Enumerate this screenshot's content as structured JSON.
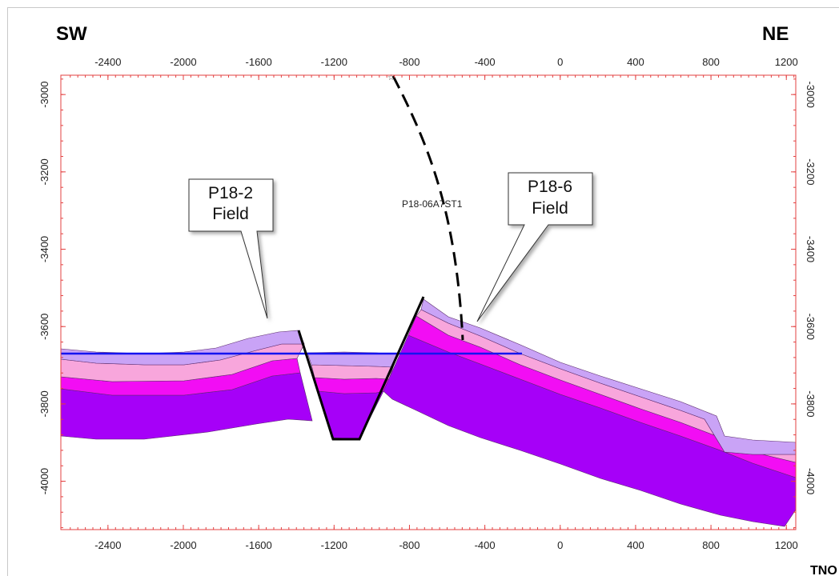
{
  "labels": {
    "sw": "SW",
    "ne": "NE",
    "well_name": "P18-06A7ST1",
    "logo": "TNO"
  },
  "callouts": [
    {
      "line1": "P18-2",
      "line2": "Field"
    },
    {
      "line1": "P18-6",
      "line2": "Field"
    }
  ],
  "axes": {
    "x_ticks": [
      -2400,
      -2000,
      -1600,
      -1200,
      -800,
      -400,
      0,
      400,
      800,
      1200
    ],
    "y_ticks": [
      -3000,
      -3200,
      -3400,
      -3600,
      -3800,
      -4000
    ],
    "x_range": [
      -2650,
      1250
    ],
    "y_range": [
      -2950,
      -4125
    ]
  },
  "colors": {
    "layer_top": "#c9a3f6",
    "layer_pink": "#f8a6dc",
    "layer_magenta": "#f20df4",
    "layer_purple": "#a600f8",
    "contact_line": "#1414f0",
    "fault": "#000000",
    "axis_red": "#e34040"
  }
}
